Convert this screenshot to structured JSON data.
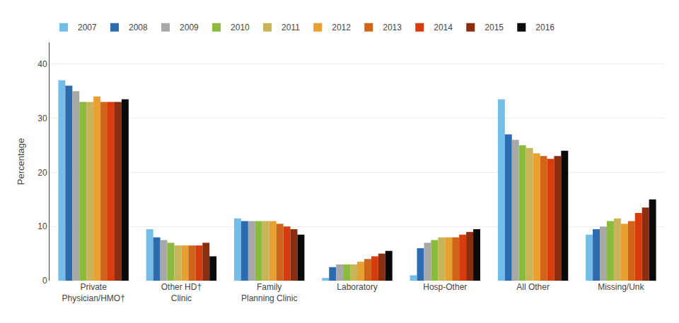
{
  "chart_data": {
    "type": "bar",
    "ylabel": "Percentage",
    "categories": [
      "Private\nPhysician/HMO†",
      "Other HD†\nClinic",
      "Family\nPlanning Clinic",
      "Laboratory",
      "Hosp-Other",
      "All Other",
      "Missing/Unk"
    ],
    "series": [
      {
        "name": "2007",
        "color": "#72BEE8",
        "values": [
          37.0,
          9.5,
          11.5,
          0.5,
          1.0,
          33.5,
          8.5
        ]
      },
      {
        "name": "2008",
        "color": "#2B6CB0",
        "values": [
          36.0,
          8.0,
          11.0,
          2.5,
          6.0,
          27.0,
          9.5
        ]
      },
      {
        "name": "2009",
        "color": "#A8A8A8",
        "values": [
          35.0,
          7.5,
          11.0,
          3.0,
          7.0,
          26.0,
          10.0
        ]
      },
      {
        "name": "2010",
        "color": "#8BBB3C",
        "values": [
          33.0,
          7.0,
          11.0,
          3.0,
          7.5,
          25.0,
          11.0
        ]
      },
      {
        "name": "2011",
        "color": "#C8B55A",
        "values": [
          33.0,
          6.5,
          11.0,
          3.0,
          8.0,
          24.5,
          11.5
        ]
      },
      {
        "name": "2012",
        "color": "#E8A030",
        "values": [
          34.0,
          6.5,
          11.0,
          3.5,
          8.0,
          23.5,
          10.5
        ]
      },
      {
        "name": "2013",
        "color": "#D06418",
        "values": [
          33.0,
          6.5,
          10.5,
          4.0,
          8.0,
          23.0,
          11.0
        ]
      },
      {
        "name": "2014",
        "color": "#D83C0C",
        "values": [
          33.0,
          6.5,
          10.0,
          4.5,
          8.5,
          22.5,
          12.5
        ]
      },
      {
        "name": "2015",
        "color": "#8B2E10",
        "values": [
          33.0,
          7.0,
          9.5,
          5.0,
          9.0,
          23.0,
          13.5
        ]
      },
      {
        "name": "2016",
        "color": "#0A0A0A",
        "values": [
          33.5,
          4.5,
          8.5,
          5.5,
          9.5,
          24.0,
          15.0
        ]
      }
    ],
    "ylim": [
      0,
      44
    ],
    "yticks": [
      0,
      10,
      20,
      30,
      40
    ],
    "grid": true,
    "legend": "top"
  }
}
